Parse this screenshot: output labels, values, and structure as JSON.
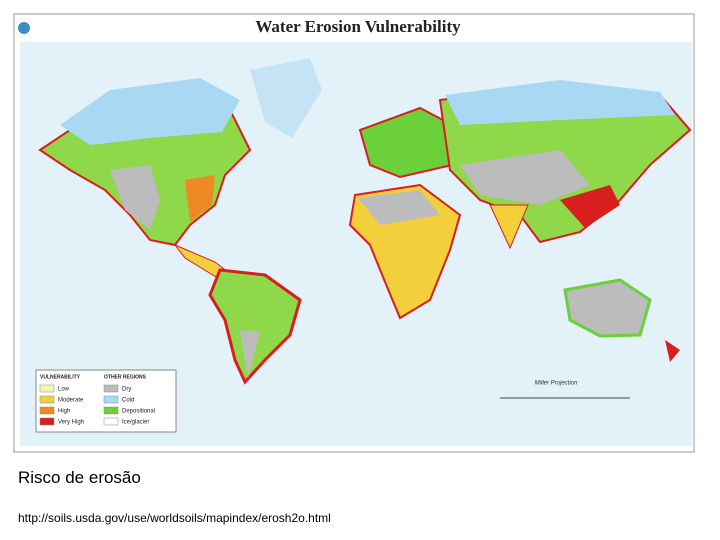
{
  "header": {
    "title": "Water Erosion Vulnerability"
  },
  "legend": {
    "vulnerability": {
      "title": "VULNERABILITY",
      "items": [
        {
          "label": "Low",
          "color": "#f7f5a8"
        },
        {
          "label": "Moderate",
          "color": "#f3cf3c"
        },
        {
          "label": "High",
          "color": "#ef8a22"
        },
        {
          "label": "Very High",
          "color": "#d81e1e"
        }
      ]
    },
    "other_regions": {
      "title": "OTHER REGIONS",
      "items": [
        {
          "label": "Dry",
          "color": "#bcbcbc"
        },
        {
          "label": "Cold",
          "color": "#a9d9f2"
        },
        {
          "label": "Depositional",
          "color": "#6cd03a"
        },
        {
          "label": "Ice/glacier",
          "color": "#ffffff"
        }
      ]
    }
  },
  "map": {
    "projection": "Miller Projection"
  },
  "caption": "Risco de erosão",
  "source_url": "http://soils.usda.gov/use/worldsoils/mapindex/erosh2o.html"
}
